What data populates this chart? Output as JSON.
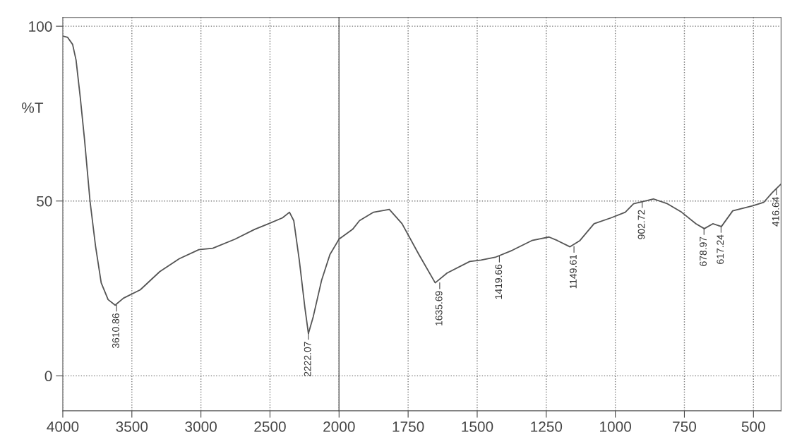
{
  "chart_data": [
    {
      "type": "line",
      "ylabel": "%T",
      "xlim": [
        4000,
        2000
      ],
      "xticks": [
        4000,
        3500,
        3000,
        2500,
        2000
      ],
      "ylim": [
        -10,
        102.5
      ],
      "yticks": [
        0,
        50,
        100
      ],
      "grid": true,
      "series": [
        {
          "color": "#555555",
          "x": [
            4000,
            3965,
            3929,
            3904,
            3874,
            3843,
            3803,
            3763,
            3722,
            3672,
            3621,
            3561,
            3439,
            3298,
            3157,
            3015,
            2914,
            2753,
            2611,
            2510,
            2409,
            2359,
            2328,
            2288,
            2247,
            2222,
            2187,
            2126,
            2066,
            2000
          ],
          "values": [
            97.2,
            96.8,
            94.8,
            90.3,
            79.8,
            67.7,
            50,
            37.1,
            26.6,
            21.8,
            20.2,
            22.2,
            24.6,
            29.8,
            33.5,
            36.1,
            36.5,
            39.1,
            41.9,
            43.5,
            45.2,
            46.8,
            44.4,
            33.1,
            19.4,
            12.1,
            16.9,
            27.4,
            34.7,
            39.1
          ]
        }
      ],
      "annotations": [
        {
          "text": "3610.86",
          "x": 3610.86,
          "y": 20.2
        },
        {
          "text": "2222.07",
          "x": 2222.07,
          "y": 12.1
        }
      ]
    },
    {
      "type": "line",
      "xlim": [
        2000,
        400
      ],
      "xticks": [
        1750,
        1500,
        1250,
        1000,
        750,
        500
      ],
      "ylim": [
        -10,
        102.5
      ],
      "yticks": [
        0,
        50,
        100
      ],
      "grid": true,
      "tick_labels": "x",
      "series": [
        {
          "color": "#555555",
          "x": [
            2000,
            1951,
            1926,
            1875,
            1818,
            1772,
            1711,
            1652,
            1609,
            1527,
            1486,
            1435,
            1373,
            1302,
            1240,
            1210,
            1164,
            1128,
            1077,
            1015,
            964,
            934,
            862,
            811,
            760,
            708,
            678,
            647,
            616,
            575,
            504,
            463,
            432,
            401
          ],
          "values": [
            39.1,
            41.9,
            44.4,
            46.8,
            47.6,
            43.5,
            34.7,
            26.6,
            29.4,
            32.7,
            33.1,
            33.9,
            35.9,
            38.7,
            39.7,
            38.7,
            36.9,
            38.7,
            43.5,
            45.2,
            46.8,
            49.2,
            50.6,
            49.2,
            46.8,
            43.5,
            42.1,
            43.5,
            42.7,
            47.2,
            48.6,
            49.6,
            52.4,
            54.8
          ]
        }
      ],
      "annotations": [
        {
          "text": "1635.69",
          "x": 1635.69,
          "y": 26.6
        },
        {
          "text": "1419.66",
          "x": 1419.66,
          "y": 34.2
        },
        {
          "text": "1149.61",
          "x": 1149.61,
          "y": 37.0
        },
        {
          "text": "902.72",
          "x": 902.72,
          "y": 49.8
        },
        {
          "text": "678.97",
          "x": 678.97,
          "y": 42.1
        },
        {
          "text": "617.24",
          "x": 617.24,
          "y": 42.7
        },
        {
          "text": "416.64",
          "x": 416.64,
          "y": 53.5
        }
      ]
    }
  ]
}
